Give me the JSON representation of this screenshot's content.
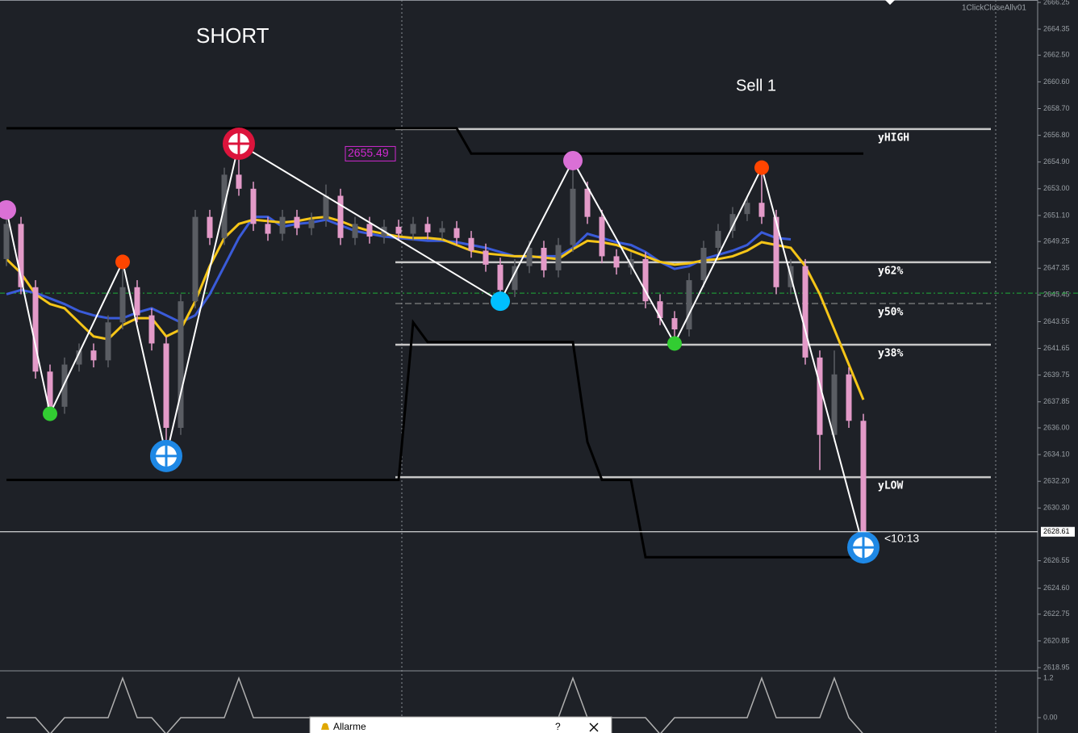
{
  "window": {
    "expert_label": "1ClickCloseAllv01",
    "alarm_title": "Allarme",
    "help": "?"
  },
  "chart_data": {
    "type": "candlestick",
    "title": "SHORT",
    "subtitle": "Sell 1",
    "timer": "<10:13",
    "price_label": 2655.49,
    "current_price": 2628.61,
    "bid_line": 2645.58,
    "ylim": [
      2618.78,
      2666.42
    ],
    "yticks": [
      2666.25,
      2664.35,
      {
        "value": 2662.5,
        "label": "2662.50"
      },
      {
        "value": 2660.6,
        "label": "2660.60"
      },
      {
        "value": 2658.7,
        "label": "2658.70"
      },
      {
        "value": 2656.8,
        "label": "2656.80"
      },
      {
        "value": 2654.9,
        "label": "2654.90"
      },
      {
        "value": 2653,
        "label": "2653.00"
      },
      {
        "value": 2651.1,
        "label": "2651.10"
      },
      2649.25,
      2647.35,
      2645.45,
      2643.55,
      2641.65,
      2639.75,
      2637.85,
      {
        "value": 2636,
        "label": "2636.00"
      },
      {
        "value": 2634.1,
        "label": "2634.10"
      },
      {
        "value": 2632.2,
        "label": "2632.20"
      },
      {
        "value": 2630.3,
        "label": "2630.30"
      },
      2626.55,
      {
        "value": 2624.6,
        "label": "2624.60"
      },
      2622.75,
      2620.85,
      2618.95
    ],
    "up_color": "#5a5d63",
    "down_color": "#e39ac8",
    "open": [
      2648.0,
      2650.5,
      2646.0,
      2640.0,
      2637.5,
      2640.5,
      2641.5,
      2640.8,
      2643.5,
      2646.0,
      2644.0,
      2642.0,
      2636.0,
      2645.0,
      2651.0,
      2649.5,
      2654.0,
      2653.0,
      2650.5,
      2649.8,
      2651.0,
      2650.2,
      2650.8,
      2652.5,
      2649.5,
      2650.5,
      2649.6,
      2650.3,
      2649.8,
      2650.5,
      2649.9,
      2650.2,
      2649.5,
      2648.6,
      2647.6,
      2645.8,
      2647.5,
      2648.8,
      2647.2,
      2649.0,
      2653.0,
      2651.0,
      2648.2,
      2647.4,
      2648.0,
      2645.0,
      2643.8,
      2643.0,
      2646.5,
      2648.8,
      2650.0,
      2651.2,
      2652.0,
      2651.0,
      2646.0,
      2647.5,
      2641.0,
      2635.5,
      2639.8,
      2636.5
    ],
    "high": [
      2651.5,
      2651.0,
      2646.5,
      2640.5,
      2641.0,
      2642.0,
      2642.0,
      2644.0,
      2647.8,
      2646.5,
      2644.5,
      2642.5,
      2645.5,
      2651.5,
      2651.5,
      2654.5,
      2656.2,
      2653.5,
      2651.0,
      2651.5,
      2651.5,
      2651.3,
      2653.3,
      2653.0,
      2651.0,
      2651.0,
      2650.8,
      2650.8,
      2651.0,
      2651.0,
      2650.7,
      2650.7,
      2650.0,
      2649.1,
      2648.1,
      2648.0,
      2649.3,
      2649.3,
      2649.5,
      2655.0,
      2653.5,
      2651.5,
      2648.7,
      2648.5,
      2648.5,
      2645.5,
      2644.3,
      2647.0,
      2649.3,
      2650.5,
      2651.7,
      2652.5,
      2654.5,
      2651.5,
      2648.0,
      2648.0,
      2641.5,
      2641.5,
      2640.3,
      2637.0
    ],
    "low": [
      2647.5,
      2645.5,
      2639.5,
      2637.0,
      2637.0,
      2640.0,
      2640.3,
      2640.3,
      2643.0,
      2643.5,
      2641.5,
      2634.0,
      2635.5,
      2644.5,
      2649.0,
      2649.0,
      2652.5,
      2650.0,
      2649.3,
      2649.3,
      2649.7,
      2649.7,
      2650.3,
      2649.0,
      2649.0,
      2649.1,
      2649.1,
      2649.3,
      2649.3,
      2649.4,
      2649.4,
      2649.0,
      2648.1,
      2647.1,
      2645.0,
      2645.3,
      2647.0,
      2646.7,
      2646.7,
      2648.5,
      2650.5,
      2647.7,
      2646.9,
      2646.9,
      2644.5,
      2643.3,
      2642.0,
      2642.5,
      2646.0,
      2648.3,
      2649.5,
      2650.7,
      2650.5,
      2645.5,
      2645.5,
      2640.5,
      2633.0,
      2635.0,
      2636.0,
      2627.5
    ],
    "close": [
      2650.5,
      2646.0,
      2640.0,
      2637.5,
      2640.5,
      2641.5,
      2640.8,
      2643.5,
      2646.0,
      2644.0,
      2642.0,
      2636.0,
      2645.0,
      2651.0,
      2649.5,
      2654.0,
      2653.0,
      2650.5,
      2649.8,
      2651.0,
      2650.2,
      2650.8,
      2652.5,
      2649.5,
      2650.5,
      2649.6,
      2650.3,
      2649.8,
      2650.5,
      2649.9,
      2650.2,
      2649.5,
      2648.6,
      2647.6,
      2645.8,
      2647.5,
      2648.8,
      2647.2,
      2649.0,
      2653.0,
      2651.0,
      2648.2,
      2647.4,
      2648.0,
      2645.0,
      2643.8,
      2643.0,
      2646.5,
      2648.8,
      2650.0,
      2651.2,
      2652.0,
      2651.0,
      2646.0,
      2647.5,
      2641.0,
      2635.5,
      2639.8,
      2636.5,
      2628.6
    ],
    "series": [
      {
        "color": "#3a5bd9",
        "width": 3,
        "values": [
          2645.5,
          2645.8,
          2645.6,
          2645.2,
          2644.8,
          2644.3,
          2644.0,
          2643.8,
          2643.8,
          2644.2,
          2644.5,
          2644.0,
          2643.5,
          2644.0,
          2645.5,
          2647.5,
          2649.5,
          2651.0,
          2651.0,
          2650.3,
          2650.5,
          2650.6,
          2650.8,
          2650.4,
          2650.0,
          2649.8,
          2649.6,
          2649.5,
          2649.4,
          2649.3,
          2649.3,
          2649.2,
          2649.0,
          2648.8,
          2648.5,
          2648.2,
          2648.1,
          2648.2,
          2648.2,
          2648.8,
          2649.8,
          2649.5,
          2649.2,
          2649.0,
          2648.5,
          2647.8,
          2647.3,
          2647.5,
          2648.0,
          2648.3,
          2648.6,
          2649.0,
          2649.9,
          2649.5,
          2649.4,
          null,
          null,
          null,
          null,
          null
        ]
      },
      {
        "color": "#f5c518",
        "width": 3,
        "values": [
          2648.0,
          2647.0,
          2645.5,
          2644.8,
          2644.5,
          2643.5,
          2642.5,
          2642.3,
          2643.3,
          2643.8,
          2643.8,
          2642.5,
          2643.0,
          2645.0,
          2647.5,
          2649.5,
          2650.5,
          2650.8,
          2650.7,
          2650.6,
          2650.7,
          2650.9,
          2651.0,
          2650.7,
          2650.3,
          2650.0,
          2649.8,
          2649.6,
          2649.5,
          2649.5,
          2649.4,
          2649.0,
          2648.6,
          2648.4,
          2648.3,
          2648.2,
          2648.2,
          2648.1,
          2648.0,
          2648.7,
          2649.3,
          2649.2,
          2649.0,
          2648.6,
          2648.2,
          2647.8,
          2647.6,
          2647.7,
          2647.9,
          2648.0,
          2648.2,
          2648.6,
          2649.2,
          2649.0,
          2648.8,
          2647.5,
          2645.5,
          2643.0,
          2640.5,
          2638.0
        ]
      },
      {
        "color": "#000000",
        "width": 3,
        "values": [
          2657.3,
          2657.3,
          2657.3,
          2657.3,
          2657.3,
          2657.3,
          2657.3,
          2657.3,
          2657.3,
          2657.3,
          2657.3,
          2657.3,
          2657.3,
          2657.3,
          2657.3,
          2657.3,
          2657.3,
          2657.3,
          2657.3,
          2657.3,
          2657.3,
          2657.3,
          2657.3,
          2657.3,
          2657.3,
          2657.3,
          2657.3,
          2657.3,
          2657.3,
          2657.3,
          2657.3,
          2657.3,
          2655.5,
          2655.5,
          2655.5,
          2655.5,
          2655.5,
          2655.5,
          2655.5,
          2655.5,
          2655.5,
          2655.5,
          2655.5,
          2655.5,
          2655.5,
          2655.5,
          2655.5,
          2655.5,
          2655.5,
          2655.5,
          2655.5,
          2655.5,
          2655.5,
          2655.5,
          2655.5,
          2655.5,
          2655.5,
          2655.5,
          2655.5,
          2655.5
        ]
      },
      {
        "color": "#000000",
        "width": 3,
        "values": [
          2632.3,
          2632.3,
          2632.3,
          2632.3,
          2632.3,
          2632.3,
          2632.3,
          2632.3,
          2632.3,
          2632.3,
          2632.3,
          2632.3,
          2632.3,
          2632.3,
          2632.3,
          2632.3,
          2632.3,
          2632.3,
          2632.3,
          2632.3,
          2632.3,
          2632.3,
          2632.3,
          2632.3,
          2632.3,
          2632.3,
          2632.3,
          2632.3,
          2643.5,
          2642.1,
          2642.1,
          2642.1,
          2642.1,
          2642.1,
          2642.1,
          2642.1,
          2642.1,
          2642.1,
          2642.1,
          2642.1,
          2635.0,
          2632.3,
          2632.3,
          2632.3,
          2626.8,
          2626.8,
          2626.8,
          2626.8,
          2626.8,
          2626.8,
          2626.8,
          2626.8,
          2626.8,
          2626.8,
          2626.8,
          2626.8,
          2626.8,
          2626.8,
          2626.8,
          2626.8
        ]
      }
    ],
    "signals": {
      "values": [
        2651.5,
        null,
        null,
        2637.0,
        null,
        null,
        null,
        null,
        2647.8,
        null,
        null,
        2634.0,
        null,
        null,
        null,
        null,
        2656.2,
        null,
        null,
        null,
        null,
        null,
        null,
        null,
        null,
        null,
        null,
        null,
        null,
        null,
        null,
        null,
        null,
        null,
        2645.0,
        null,
        null,
        null,
        null,
        2655.0,
        null,
        null,
        null,
        null,
        null,
        null,
        2642.0,
        null,
        null,
        null,
        null,
        null,
        2654.5,
        null,
        null,
        null,
        null,
        null,
        null,
        2627.5
      ],
      "colors": [
        "#da70d6",
        null,
        null,
        "#32cd32",
        null,
        null,
        null,
        null,
        "#ff4500",
        null,
        null,
        "#1e88e5",
        null,
        null,
        null,
        null,
        "#dc143c",
        null,
        null,
        null,
        null,
        null,
        null,
        null,
        null,
        null,
        null,
        null,
        null,
        null,
        null,
        null,
        null,
        null,
        "#00bfff",
        null,
        null,
        null,
        null,
        "#da70d6",
        null,
        null,
        null,
        null,
        null,
        null,
        "#32cd32",
        null,
        null,
        null,
        null,
        null,
        "#ff4500",
        null,
        null,
        null,
        null,
        null,
        null,
        "#1e88e5"
      ],
      "big_colors": [
        "#1e88e5",
        "#dc143c"
      ]
    },
    "levels": [
      {
        "name": "yHIGH",
        "value": 2657.24
      },
      {
        "name": "y62%",
        "value": 2647.77
      },
      {
        "name": "y50%",
        "value": 2644.84,
        "dashed": true
      },
      {
        "name": "y38%",
        "value": 2641.91
      },
      {
        "name": "yLOW",
        "value": 2632.49
      }
    ],
    "indicator": {
      "ylim": [
        -0.466,
        1.396
      ],
      "yticks": [
        1.2,
        {
          "value": 0,
          "label": "0.00"
        }
      ],
      "values": [
        0,
        0,
        0,
        -0.5,
        0,
        0,
        0,
        0,
        1.2,
        0,
        0,
        -0.5,
        0,
        0,
        0,
        0,
        1.2,
        0,
        0,
        0,
        0,
        0,
        0,
        0,
        0,
        0,
        0,
        0,
        0,
        0,
        0,
        0,
        0,
        0,
        0,
        0,
        0,
        0,
        0,
        1.2,
        0,
        0,
        0,
        0,
        0,
        -0.5,
        0,
        0,
        0,
        0,
        0,
        0,
        1.2,
        0,
        0,
        0,
        0,
        1.2,
        0,
        -0.5
      ]
    }
  }
}
